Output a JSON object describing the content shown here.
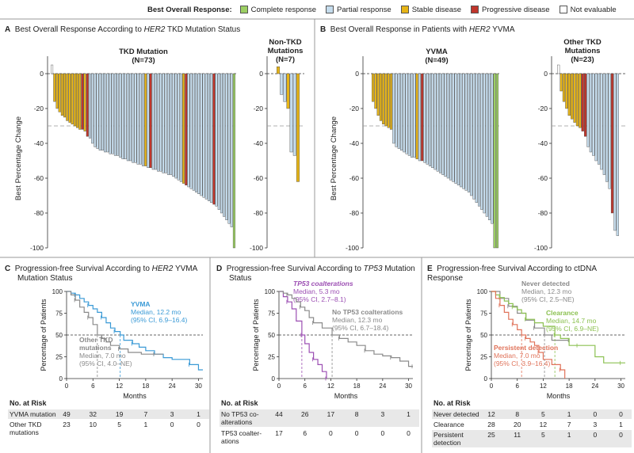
{
  "legend": {
    "title": "Best Overall Response:",
    "items": [
      {
        "label": "Complete response",
        "color": "#9ccf63"
      },
      {
        "label": "Partial response",
        "color": "#c5dced"
      },
      {
        "label": "Stable disease",
        "color": "#e6b417"
      },
      {
        "label": "Progressive disease",
        "color": "#c0352b"
      },
      {
        "label": "Not evaluable",
        "color": "#ffffff"
      }
    ]
  },
  "panel_a": {
    "letter": "A",
    "title": "Best Overall Response According to ",
    "gene": "HER2",
    "title_rest": " TKD Mutation Status"
  },
  "panel_b": {
    "letter": "B",
    "title": "Best Overall Response in Patients with ",
    "gene": "HER2",
    "title_rest": " YVMA"
  },
  "panel_c": {
    "letter": "C",
    "title1": "Progression-free Survival According to ",
    "gene": "HER2",
    "title1_rest": " YVMA",
    "title2": "Mutation Status"
  },
  "panel_d": {
    "letter": "D",
    "title1": "Progression-free Survival According to ",
    "gene": "TP53",
    "title1_rest": " Mutation",
    "title2": "Status"
  },
  "panel_e": {
    "letter": "E",
    "title1": "Progression-free Survival According to ctDNA Response"
  },
  "chart_data": [
    {
      "id": "A1",
      "type": "bar",
      "title": "TKD Mutation",
      "subtitle": "(N=73)",
      "ylabel": "Best Percentage Change",
      "ylim": [
        -100,
        10
      ],
      "yticks": [
        0,
        -20,
        -40,
        -60,
        -80,
        -100
      ],
      "ref_line": -30,
      "values": [
        5,
        -16,
        -20,
        -22,
        -24,
        -25,
        -27,
        -28,
        -29,
        -30,
        -31,
        -32,
        -32,
        -33,
        -36,
        -37,
        -40,
        -42,
        -43,
        -44,
        -44,
        -45,
        -45,
        -46,
        -46,
        -47,
        -47,
        -48,
        -49,
        -49,
        -50,
        -50,
        -51,
        -51,
        -52,
        -52,
        -53,
        -53,
        -54,
        -54,
        -55,
        -55,
        -56,
        -56,
        -57,
        -57,
        -58,
        -58,
        -59,
        -60,
        -61,
        -62,
        -63,
        -64,
        -65,
        -66,
        -67,
        -68,
        -69,
        -70,
        -71,
        -72,
        -73,
        -74,
        -75,
        -76,
        -78,
        -80,
        -82,
        -84,
        -86,
        -88,
        -100
      ],
      "colors": [
        "NE",
        "SD",
        "SD",
        "SD",
        "SD",
        "SD",
        "SD",
        "SD",
        "SD",
        "SD",
        "SD",
        "SD",
        "PD",
        "SD",
        "PD",
        "PR",
        "PR",
        "PR",
        "PR",
        "PR",
        "PR",
        "PR",
        "PR",
        "PR",
        "PR",
        "PR",
        "PR",
        "PR",
        "PR",
        "PR",
        "PR",
        "PR",
        "PR",
        "PR",
        "PR",
        "PR",
        "PR",
        "SD",
        "PR",
        "PD",
        "PR",
        "PR",
        "PR",
        "PR",
        "PR",
        "PR",
        "PR",
        "PR",
        "PR",
        "PR",
        "PR",
        "PR",
        "SD",
        "PD",
        "PR",
        "PR",
        "PR",
        "PR",
        "PR",
        "PR",
        "PR",
        "PR",
        "PR",
        "PR",
        "PD",
        "PR",
        "PR",
        "PR",
        "PR",
        "PR",
        "PR",
        "PR",
        "CR"
      ]
    },
    {
      "id": "A2",
      "type": "bar",
      "title": "Non-TKD",
      "subtitle": "Mutations",
      "subtitle2": "(N=7)",
      "ylim": [
        -100,
        10
      ],
      "yticks": [
        0,
        -20,
        -40,
        -60,
        -80,
        -100
      ],
      "ref_line": -30,
      "values": [
        4,
        -12,
        -16,
        -20,
        -45,
        -47,
        -62
      ],
      "colors": [
        "SD",
        "PR",
        "PR",
        "SD",
        "PR",
        "PR",
        "SD"
      ]
    },
    {
      "id": "B1",
      "type": "bar",
      "title": "YVMA",
      "subtitle": "(N=49)",
      "ylabel": "Best Percentage Change",
      "ylim": [
        -100,
        10
      ],
      "yticks": [
        0,
        -20,
        -40,
        -60,
        -80,
        -100
      ],
      "ref_line": -30,
      "values": [
        -16,
        -20,
        -24,
        -27,
        -29,
        -30,
        -31,
        -32,
        -40,
        -42,
        -43,
        -44,
        -45,
        -46,
        -47,
        -48,
        -48,
        -49,
        -50,
        -50,
        -51,
        -52,
        -53,
        -54,
        -55,
        -56,
        -57,
        -58,
        -59,
        -60,
        -61,
        -62,
        -63,
        -64,
        -65,
        -66,
        -67,
        -68,
        -70,
        -72,
        -74,
        -76,
        -78,
        -80,
        -82,
        -84,
        -86,
        -100,
        -100
      ],
      "colors": [
        "SD",
        "SD",
        "SD",
        "SD",
        "SD",
        "SD",
        "SD",
        "SD",
        "PR",
        "PR",
        "PR",
        "PR",
        "PR",
        "PR",
        "PR",
        "PR",
        "PR",
        "SD",
        "PR",
        "PD",
        "PR",
        "PR",
        "PR",
        "PR",
        "PR",
        "PR",
        "PR",
        "PR",
        "PR",
        "PR",
        "PR",
        "PR",
        "PR",
        "PR",
        "PR",
        "PR",
        "PR",
        "PR",
        "PR",
        "PR",
        "PR",
        "PR",
        "PR",
        "PR",
        "PR",
        "PR",
        "PR",
        "CR",
        "CR"
      ]
    },
    {
      "id": "B2",
      "type": "bar",
      "title": "Other TKD",
      "subtitle": "Mutations",
      "subtitle2": "(N=23)",
      "ylim": [
        -100,
        10
      ],
      "yticks": [
        0,
        -20,
        -40,
        -60,
        -80,
        -100
      ],
      "ref_line": -30,
      "values": [
        5,
        -10,
        -16,
        -20,
        -24,
        -26,
        -28,
        -30,
        -31,
        -33,
        -36,
        -42,
        -45,
        -47,
        -50,
        -52,
        -55,
        -58,
        -62,
        -66,
        -80,
        -90,
        -93
      ],
      "colors": [
        "NE",
        "SD",
        "SD",
        "SD",
        "SD",
        "SD",
        "SD",
        "SD",
        "SD",
        "PD",
        "PD",
        "PR",
        "PR",
        "PR",
        "PR",
        "PR",
        "PR",
        "PR",
        "PR",
        "PR",
        "PD",
        "PR",
        "PR"
      ]
    },
    {
      "id": "C",
      "type": "line",
      "xlabel": "Months",
      "ylabel": "Percentage of Patients",
      "xlim": [
        0,
        31
      ],
      "ylim": [
        0,
        100
      ],
      "xticks": [
        0,
        6,
        12,
        18,
        24,
        30
      ],
      "yticks": [
        0,
        25,
        50,
        75,
        100
      ],
      "ref_line": 50,
      "series": [
        {
          "name": "YVMA",
          "color": "#3a9ad6",
          "label_title": "YVMA",
          "label_lines": [
            "Median, 12.2 mo",
            "(95% CI, 6.9–16.4)"
          ],
          "median": 12.2,
          "x": [
            0,
            1,
            2,
            3,
            4,
            5,
            6,
            7,
            8,
            9,
            10,
            11,
            12.2,
            13,
            15,
            16.5,
            18,
            20,
            22,
            24,
            28,
            30,
            31
          ],
          "y": [
            100,
            98,
            96,
            92,
            88,
            84,
            80,
            76,
            70,
            64,
            58,
            54,
            50,
            44,
            40,
            36,
            32,
            28,
            24,
            22,
            16,
            10,
            10
          ]
        },
        {
          "name": "Other TKD mutations",
          "color": "#8a8a8a",
          "label_title": "Other TKD",
          "label_title2": "mutations",
          "label_lines": [
            "Median, 7.0 mo",
            "(95% CI, 4.0–NE)"
          ],
          "median": 7.0,
          "x": [
            0,
            1,
            2,
            3,
            4,
            5,
            6,
            7,
            8,
            9,
            10,
            12,
            14,
            17,
            20,
            22
          ],
          "y": [
            100,
            96,
            90,
            82,
            76,
            70,
            62,
            50,
            46,
            42,
            38,
            34,
            30,
            28,
            28,
            28
          ]
        }
      ],
      "risk_table": {
        "header": "No. at Risk",
        "rows": [
          {
            "label": "YVMA mutation",
            "values": [
              "49",
              "32",
              "19",
              "7",
              "3",
              "1"
            ]
          },
          {
            "label": "Other TKD",
            "label2": "mutations",
            "values": [
              "23",
              "10",
              "5",
              "1",
              "0",
              "0"
            ]
          }
        ]
      }
    },
    {
      "id": "D",
      "type": "line",
      "xlabel": "Months",
      "ylabel": "Percentage of Patients",
      "xlim": [
        0,
        31
      ],
      "ylim": [
        0,
        100
      ],
      "xticks": [
        0,
        6,
        12,
        18,
        24,
        30
      ],
      "yticks": [
        0,
        25,
        50,
        75,
        100
      ],
      "ref_line": 50,
      "series": [
        {
          "name": "TP53 coalterations",
          "color": "#9c4fb3",
          "label_title": "TP53 coalterations",
          "label_lines": [
            "Median, 5.3 mo",
            "(95% CI, 2.7–8.1)"
          ],
          "median": 5.3,
          "x": [
            0,
            1,
            2,
            3,
            4,
            5.3,
            6,
            7,
            8,
            9,
            10,
            11
          ],
          "y": [
            100,
            94,
            88,
            80,
            66,
            50,
            40,
            30,
            22,
            16,
            8,
            0
          ]
        },
        {
          "name": "No TP53 coalterations",
          "color": "#8a8a8a",
          "label_title": "No TP53 coalterations",
          "label_lines": [
            "Median, 12.3 mo",
            "(95% CI, 6.7–18.4)"
          ],
          "median": 12.3,
          "x": [
            0,
            1,
            2,
            3,
            4,
            5,
            6,
            7,
            8,
            10,
            12.3,
            14,
            16,
            18,
            20,
            22,
            24,
            26,
            28,
            30,
            31
          ],
          "y": [
            100,
            98,
            96,
            92,
            88,
            82,
            78,
            70,
            64,
            58,
            50,
            46,
            42,
            38,
            32,
            28,
            26,
            24,
            20,
            14,
            14
          ]
        }
      ],
      "risk_table": {
        "header": "No. at Risk",
        "rows": [
          {
            "label": "No TP53 co-",
            "label2": "alterations",
            "values": [
              "44",
              "26",
              "17",
              "8",
              "3",
              "1"
            ]
          },
          {
            "label": "TP53 coalter-",
            "label2": "ations",
            "values": [
              "17",
              "6",
              "0",
              "0",
              "0",
              "0"
            ]
          }
        ]
      }
    },
    {
      "id": "E",
      "type": "line",
      "xlabel": "Months",
      "ylabel": "Percentage of Patients",
      "xlim": [
        0,
        31
      ],
      "ylim": [
        0,
        100
      ],
      "xticks": [
        0,
        6,
        12,
        18,
        24,
        30
      ],
      "yticks": [
        0,
        25,
        50,
        75,
        100
      ],
      "ref_line": 50,
      "series": [
        {
          "name": "Never detected",
          "color": "#8a8a8a",
          "label_title": "Never detected",
          "label_lines": [
            "Median, 12.3 mo",
            "(95% CI, 2.5–NE)"
          ],
          "median": 12.3,
          "x": [
            0,
            2,
            4,
            6,
            8,
            10,
            12.3,
            14,
            18
          ],
          "y": [
            100,
            92,
            83,
            75,
            67,
            58,
            50,
            44,
            44
          ]
        },
        {
          "name": "Clearance",
          "color": "#8cc152",
          "label_title": "Clearance",
          "label_lines": [
            "Median, 14.7 mo",
            "(95% CI, 6.9–NE)"
          ],
          "median": 14.7,
          "x": [
            0,
            1,
            2,
            3,
            4,
            5,
            6,
            7,
            8,
            10,
            12,
            14.7,
            16,
            18,
            20,
            24,
            26,
            30,
            31
          ],
          "y": [
            100,
            96,
            93,
            89,
            86,
            82,
            79,
            75,
            68,
            64,
            60,
            50,
            46,
            38,
            38,
            25,
            18,
            18,
            18
          ]
        },
        {
          "name": "Persistent detection",
          "color": "#e0735a",
          "label_title": "Persistent detection",
          "label_lines": [
            "Median, 7.0 mo",
            "(95% CI, 3.9–16.4)"
          ],
          "median": 7.0,
          "x": [
            0,
            1,
            2,
            3,
            4,
            5,
            6,
            7,
            8,
            9,
            10,
            11,
            12,
            14,
            16,
            17
          ],
          "y": [
            100,
            92,
            84,
            76,
            68,
            62,
            56,
            50,
            46,
            42,
            38,
            30,
            22,
            16,
            10,
            0
          ]
        }
      ],
      "risk_table": {
        "header": "No. at Risk",
        "rows": [
          {
            "label": "Never detected",
            "values": [
              "12",
              "8",
              "5",
              "1",
              "0",
              "0"
            ]
          },
          {
            "label": "Clearance",
            "values": [
              "28",
              "20",
              "12",
              "7",
              "3",
              "1"
            ]
          },
          {
            "label": "Persistent",
            "label2": "detection",
            "values": [
              "25",
              "11",
              "5",
              "1",
              "0",
              "0"
            ]
          }
        ]
      }
    }
  ]
}
